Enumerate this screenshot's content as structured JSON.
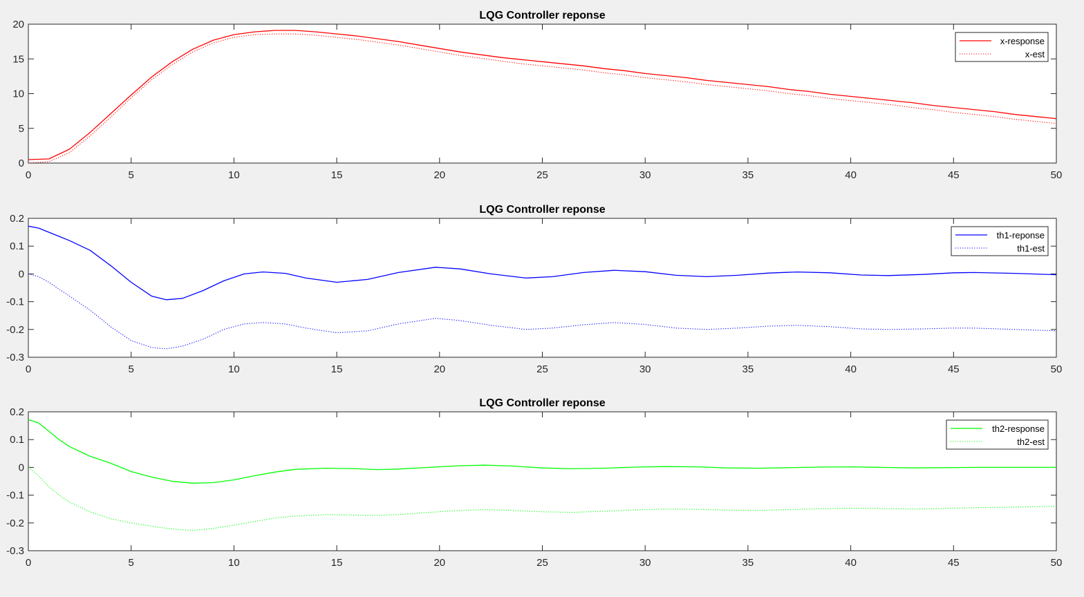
{
  "chart_data": [
    {
      "type": "line",
      "title": "LQG Controller reponse",
      "xlabel": "",
      "ylabel": "",
      "xlim": [
        0,
        50
      ],
      "ylim": [
        0,
        20
      ],
      "xticks": [
        "0",
        "5",
        "10",
        "15",
        "20",
        "25",
        "30",
        "35",
        "40",
        "45",
        "50"
      ],
      "yticks": [
        "0",
        "5",
        "10",
        "15",
        "20"
      ],
      "legend_position": "top-right",
      "grid": false,
      "series": [
        {
          "name": "x-response",
          "color": "#ff0000",
          "style": "solid",
          "x": [
            0,
            1,
            2,
            3,
            4,
            5,
            6,
            7,
            8,
            9,
            10,
            11,
            12,
            13,
            14,
            15,
            16,
            17,
            18,
            19,
            20,
            21,
            22,
            23,
            24,
            25,
            26,
            27,
            28,
            29,
            30,
            31,
            32,
            33,
            34,
            35,
            36,
            37,
            38,
            39,
            40,
            41,
            42,
            43,
            44,
            45,
            46,
            47,
            48,
            49,
            50
          ],
          "y": [
            0.5,
            0.6,
            2.0,
            4.4,
            7.1,
            9.8,
            12.4,
            14.6,
            16.4,
            17.7,
            18.5,
            18.9,
            19.1,
            19.1,
            18.9,
            18.6,
            18.3,
            17.9,
            17.5,
            17.0,
            16.5,
            16.0,
            15.6,
            15.2,
            14.9,
            14.6,
            14.3,
            14.0,
            13.6,
            13.3,
            12.9,
            12.6,
            12.3,
            11.9,
            11.6,
            11.3,
            11.0,
            10.6,
            10.3,
            9.9,
            9.6,
            9.3,
            9.0,
            8.7,
            8.3,
            8.0,
            7.7,
            7.4,
            7.0,
            6.7,
            6.4
          ]
        },
        {
          "name": "x-est",
          "color": "#ff0000",
          "style": "dotted",
          "x": [
            0,
            1,
            2,
            3,
            4,
            5,
            6,
            7,
            8,
            9,
            10,
            11,
            12,
            13,
            14,
            15,
            16,
            17,
            18,
            19,
            20,
            21,
            22,
            23,
            24,
            25,
            26,
            27,
            28,
            29,
            30,
            31,
            32,
            33,
            34,
            35,
            36,
            37,
            38,
            39,
            40,
            41,
            42,
            43,
            44,
            45,
            46,
            47,
            48,
            49,
            50
          ],
          "y": [
            0.0,
            0.2,
            1.5,
            3.9,
            6.6,
            9.4,
            12.0,
            14.2,
            16.0,
            17.3,
            18.1,
            18.5,
            18.6,
            18.6,
            18.4,
            18.1,
            17.8,
            17.4,
            17.0,
            16.5,
            16.0,
            15.5,
            15.1,
            14.7,
            14.3,
            14.0,
            13.7,
            13.4,
            13.0,
            12.7,
            12.3,
            12.0,
            11.7,
            11.3,
            11.0,
            10.7,
            10.4,
            10.0,
            9.7,
            9.3,
            9.0,
            8.7,
            8.4,
            8.0,
            7.7,
            7.3,
            7.0,
            6.7,
            6.3,
            6.0,
            5.7
          ]
        }
      ]
    },
    {
      "type": "line",
      "title": "LQG Controller reponse",
      "xlabel": "",
      "ylabel": "",
      "xlim": [
        0,
        50
      ],
      "ylim": [
        -0.3,
        0.2
      ],
      "xticks": [
        "0",
        "5",
        "10",
        "15",
        "20",
        "25",
        "30",
        "35",
        "40",
        "45",
        "50"
      ],
      "yticks": [
        "-0.3",
        "-0.2",
        "-0.1",
        "0",
        "0.1",
        "0.2"
      ],
      "legend_position": "top-right",
      "grid": false,
      "series": [
        {
          "name": "th1-reponse",
          "color": "#0000ff",
          "style": "solid",
          "x": [
            0,
            0.5,
            1,
            1.5,
            2,
            3,
            4,
            5,
            6,
            6.7,
            7.5,
            8.5,
            9.5,
            10.5,
            11.4,
            12.5,
            13.5,
            15.0,
            16.5,
            18.0,
            19.8,
            21.0,
            22.5,
            24.2,
            25.5,
            27.0,
            28.5,
            30.0,
            31.5,
            33.0,
            34.5,
            36.0,
            37.4,
            39.0,
            40.5,
            41.8,
            43.5,
            45.0,
            46.0,
            48.0,
            50.0
          ],
          "y": [
            0.172,
            0.165,
            0.15,
            0.135,
            0.12,
            0.085,
            0.03,
            -0.03,
            -0.08,
            -0.093,
            -0.088,
            -0.06,
            -0.025,
            0.0,
            0.007,
            0.002,
            -0.015,
            -0.03,
            -0.02,
            0.005,
            0.024,
            0.018,
            0.0,
            -0.015,
            -0.01,
            0.005,
            0.013,
            0.008,
            -0.005,
            -0.01,
            -0.005,
            0.003,
            0.007,
            0.004,
            -0.004,
            -0.006,
            -0.002,
            0.004,
            0.005,
            0.002,
            -0.003
          ]
        },
        {
          "name": "th1-est",
          "color": "#0000ff",
          "style": "dotted",
          "x": [
            0,
            0.5,
            1,
            1.5,
            2,
            3,
            4,
            5,
            6,
            6.7,
            7.5,
            8.5,
            9.5,
            10.5,
            11.4,
            12.5,
            13.5,
            15.0,
            16.5,
            18.0,
            19.8,
            21.0,
            22.5,
            24.2,
            25.5,
            27.0,
            28.5,
            30.0,
            31.5,
            33.0,
            34.5,
            36.0,
            37.4,
            39.0,
            40.5,
            41.8,
            43.5,
            45.0,
            46.0,
            48.0,
            50.0
          ],
          "y": [
            0.0,
            -0.01,
            -0.03,
            -0.055,
            -0.08,
            -0.13,
            -0.19,
            -0.24,
            -0.265,
            -0.27,
            -0.26,
            -0.235,
            -0.2,
            -0.18,
            -0.175,
            -0.18,
            -0.195,
            -0.212,
            -0.205,
            -0.18,
            -0.16,
            -0.168,
            -0.185,
            -0.2,
            -0.195,
            -0.183,
            -0.175,
            -0.182,
            -0.195,
            -0.2,
            -0.195,
            -0.188,
            -0.185,
            -0.19,
            -0.198,
            -0.2,
            -0.198,
            -0.195,
            -0.195,
            -0.2,
            -0.205
          ]
        }
      ]
    },
    {
      "type": "line",
      "title": "LQG Controller reponse",
      "xlabel": "",
      "ylabel": "",
      "xlim": [
        0,
        50
      ],
      "ylim": [
        -0.3,
        0.2
      ],
      "xticks": [
        "0",
        "5",
        "10",
        "15",
        "20",
        "25",
        "30",
        "35",
        "40",
        "45",
        "50"
      ],
      "yticks": [
        "-0.3",
        "-0.2",
        "-0.1",
        "0",
        "0.1",
        "0.2"
      ],
      "legend_position": "top-right",
      "grid": false,
      "series": [
        {
          "name": "th2-response",
          "color": "#00ff00",
          "style": "solid",
          "x": [
            0,
            0.5,
            1,
            1.5,
            2,
            3,
            4,
            5,
            6,
            7,
            8,
            9,
            10,
            11,
            12,
            13,
            14.5,
            16,
            17,
            18,
            19.5,
            21,
            22.2,
            23.5,
            25,
            26.5,
            28,
            29.5,
            31,
            32.5,
            34,
            35.5,
            37,
            38.5,
            40,
            41.5,
            43,
            44.5,
            46,
            48,
            50
          ],
          "y": [
            0.172,
            0.16,
            0.13,
            0.1,
            0.075,
            0.04,
            0.015,
            -0.015,
            -0.035,
            -0.05,
            -0.057,
            -0.055,
            -0.045,
            -0.03,
            -0.017,
            -0.007,
            -0.003,
            -0.005,
            -0.008,
            -0.006,
            0.0,
            0.006,
            0.008,
            0.005,
            -0.002,
            -0.005,
            -0.003,
            0.001,
            0.003,
            0.002,
            -0.002,
            -0.003,
            -0.001,
            0.001,
            0.002,
            0.0,
            -0.002,
            -0.001,
            0.0,
            0.0,
            0.0
          ]
        },
        {
          "name": "th2-est",
          "color": "#00ff00",
          "style": "dotted",
          "x": [
            0,
            0.5,
            1,
            1.5,
            2,
            3,
            4,
            5,
            6,
            7,
            8,
            9,
            10,
            11,
            12,
            13,
            14.5,
            16,
            17,
            18,
            19.5,
            21,
            22.2,
            23.5,
            25,
            26.5,
            28,
            29.5,
            31,
            32.5,
            34,
            35.5,
            37,
            38.5,
            40,
            41.5,
            43,
            44.5,
            46,
            48,
            50
          ],
          "y": [
            0.0,
            -0.03,
            -0.07,
            -0.1,
            -0.125,
            -0.16,
            -0.185,
            -0.2,
            -0.212,
            -0.222,
            -0.227,
            -0.22,
            -0.208,
            -0.195,
            -0.182,
            -0.175,
            -0.17,
            -0.172,
            -0.173,
            -0.17,
            -0.162,
            -0.155,
            -0.152,
            -0.155,
            -0.16,
            -0.162,
            -0.158,
            -0.153,
            -0.15,
            -0.151,
            -0.154,
            -0.155,
            -0.152,
            -0.149,
            -0.147,
            -0.148,
            -0.15,
            -0.148,
            -0.145,
            -0.143,
            -0.14
          ]
        }
      ]
    }
  ]
}
